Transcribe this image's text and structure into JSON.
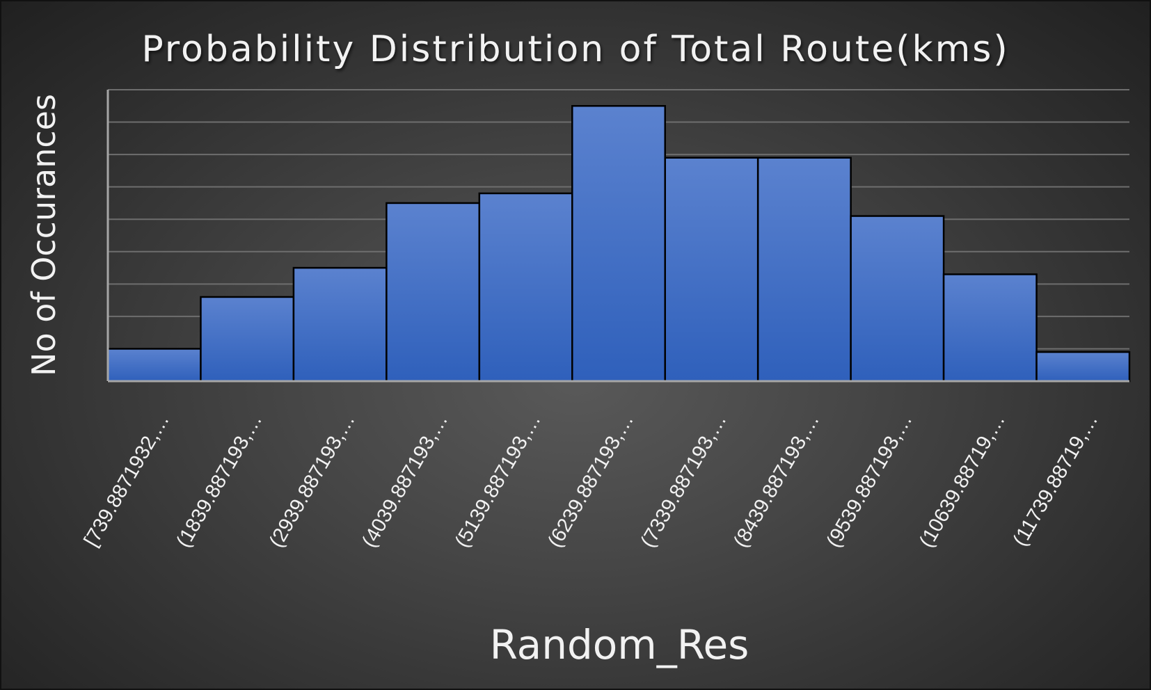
{
  "chart_data": {
    "type": "bar",
    "title": "Probability Distribution of Total Route(kms)",
    "xlabel": "Random_Res",
    "ylabel": "No of Occurances",
    "categories": [
      "[739.8871932,…",
      "(1839.887193,…",
      "(2939.887193,…",
      "(4039.887193,…",
      "(5139.887193,…",
      "(6239.887193,…",
      "(7339.887193,…",
      "(8439.887193,…",
      "(9539.887193,…",
      "(10639.88719,…",
      "(11739.88719,…"
    ],
    "values": [
      1.0,
      2.6,
      3.5,
      5.5,
      5.8,
      8.5,
      6.9,
      6.9,
      5.1,
      3.3,
      0.9
    ],
    "ylim": [
      0,
      9
    ],
    "grid": true,
    "gap_width": 0,
    "y_tick_labels_visible": false,
    "colors": {
      "bar_top": "#5b82cf",
      "bar_bottom": "#2f60bb",
      "bar_edge": "#000000",
      "text": "#f2f2f2"
    }
  }
}
